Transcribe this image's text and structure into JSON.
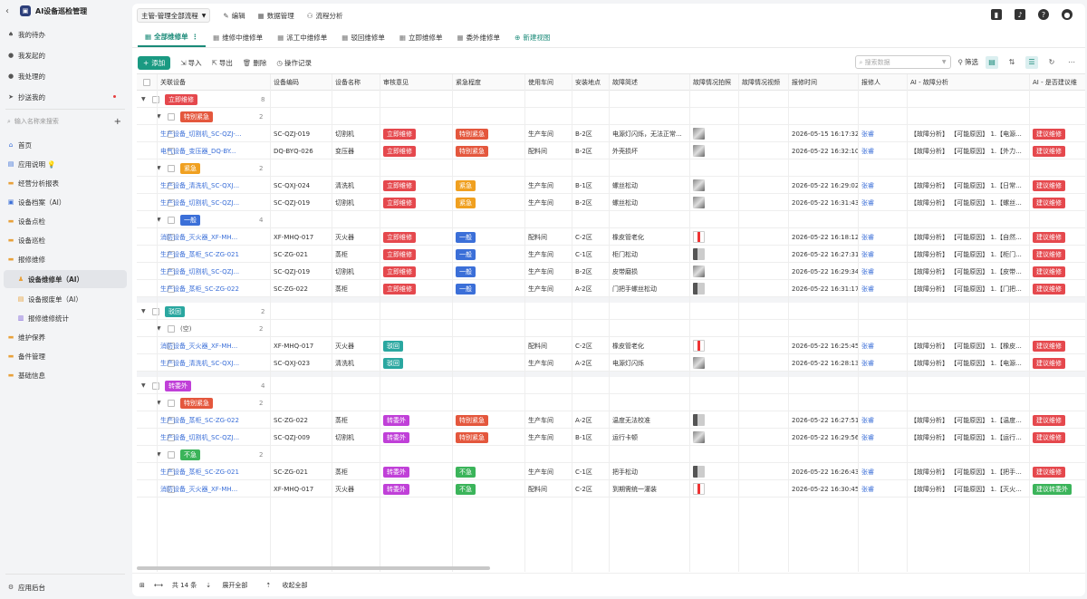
{
  "app": {
    "title": "AI设备巡检管理",
    "back_icon": "chevron-left",
    "logo_icon": "app-logo"
  },
  "sidebar": {
    "quick": [
      {
        "label": "我的待办",
        "icon": "pin-icon"
      },
      {
        "label": "我发起的",
        "icon": "send-icon"
      },
      {
        "label": "我处理的",
        "icon": "check-icon"
      },
      {
        "label": "抄送我的",
        "icon": "paper-plane-icon",
        "badge_dot": true
      }
    ],
    "search_placeholder": "输入名称来搜索",
    "nav": [
      {
        "label": "首页",
        "icon": "home-icon",
        "level": 0
      },
      {
        "label": "应用说明",
        "icon": "doc-icon",
        "level": 0,
        "emoji": "💡"
      },
      {
        "label": "经营分析报表",
        "icon": "folder-icon",
        "level": 0
      },
      {
        "label": "设备档案（AI）",
        "icon": "device-icon",
        "level": 0
      },
      {
        "label": "设备点检",
        "icon": "folder-icon",
        "level": 0
      },
      {
        "label": "设备巡检",
        "icon": "folder-icon",
        "level": 0
      },
      {
        "label": "报修维修",
        "icon": "folder-icon",
        "level": 0
      },
      {
        "label": "设备维修单（AI）",
        "icon": "person-icon",
        "level": 1,
        "active": true
      },
      {
        "label": "设备报废单（AI）",
        "icon": "form-icon",
        "level": 1
      },
      {
        "label": "报修维修统计",
        "icon": "chart-icon",
        "level": 1
      },
      {
        "label": "维护保养",
        "icon": "folder-icon",
        "level": 0
      },
      {
        "label": "备件管理",
        "icon": "folder-icon",
        "level": 0
      },
      {
        "label": "基础信息",
        "icon": "folder-icon",
        "level": 0
      }
    ],
    "footer": {
      "label": "应用后台",
      "icon": "gear-icon"
    }
  },
  "topbar": {
    "flow_select": "主管-管理全部流程",
    "buttons": [
      {
        "label": "编辑",
        "icon": "edit-icon"
      },
      {
        "label": "数据管理",
        "icon": "database-icon"
      },
      {
        "label": "流程分析",
        "icon": "flow-icon"
      }
    ],
    "right_icons": [
      "notebook-icon",
      "bell-icon",
      "help-icon",
      "user-icon"
    ]
  },
  "view_tabs": [
    {
      "label": "全部维修单",
      "active": true,
      "more": "⋮"
    },
    {
      "label": "维修中维修单"
    },
    {
      "label": "派工中维修单"
    },
    {
      "label": "驳回维修单"
    },
    {
      "label": "立即维修单"
    },
    {
      "label": "委外维修单"
    }
  ],
  "new_view": "新建视图",
  "toolbar": {
    "add": "添加",
    "import": "导入",
    "export": "导出",
    "delete": "删除",
    "log": "操作记录",
    "search_placeholder": "搜索数据",
    "filter": "筛选"
  },
  "columns": [
    "关联设备",
    "设备编码",
    "设备名称",
    "审核意见",
    "紧急程度",
    "使用车间",
    "安装地点",
    "故障简述",
    "故障情况拍照",
    "故障情况视频",
    "报修时间",
    "报修人",
    "AI - 故障分析",
    "AI - 是否建议维"
  ],
  "groups": [
    {
      "label": "立即维修",
      "color": "#e5484d",
      "count": 8,
      "subgroups": [
        {
          "label": "特别紧急",
          "color": "#e4573d",
          "count": 2,
          "rows": [
            {
              "device": "生产设备_切割机_SC-QZJ-...",
              "code": "SC-QZJ-019",
              "name": "切割机",
              "review": "立即维修",
              "review_color": "#e5484d",
              "urgency": "特别紧急",
              "urgency_color": "#e4573d",
              "workshop": "生产车间",
              "location": "B-2区",
              "desc": "电源灯闪烁，无法正常...",
              "photo": "saw",
              "time": "2026-05-15 16:17:32",
              "reporter": "张睿",
              "ai": "【故障分析】 【可能原因】 1.【电源...",
              "suggest": "建议维修",
              "suggest_color": "#e5484d"
            },
            {
              "device": "电气设备_变压器_DQ-BY...",
              "code": "DQ-BYQ-026",
              "name": "变压器",
              "review": "立即维修",
              "review_color": "#e5484d",
              "urgency": "特别紧急",
              "urgency_color": "#e4573d",
              "workshop": "配料间",
              "location": "B-2区",
              "desc": "外壳损坏",
              "photo": "transformer",
              "time": "2026-05-22 16:32:10",
              "reporter": "张睿",
              "ai": "【故障分析】 【可能原因】 1.【外力...",
              "suggest": "建议维修",
              "suggest_color": "#e5484d"
            }
          ]
        },
        {
          "label": "紧急",
          "color": "#f0a020",
          "count": 2,
          "rows": [
            {
              "device": "生产设备_清洗机_SC-QXJ...",
              "code": "SC-QXJ-024",
              "name": "清洗机",
              "review": "立即维修",
              "review_color": "#e5484d",
              "urgency": "紧急",
              "urgency_color": "#f0a020",
              "workshop": "生产车间",
              "location": "B-1区",
              "desc": "螺丝松动",
              "photo": "saw",
              "time": "2026-05-22 16:29:02",
              "reporter": "张睿",
              "ai": "【故障分析】 【可能原因】 1.【日常...",
              "suggest": "建议维修",
              "suggest_color": "#e5484d"
            },
            {
              "device": "生产设备_切割机_SC-QZJ...",
              "code": "SC-QZJ-019",
              "name": "切割机",
              "review": "立即维修",
              "review_color": "#e5484d",
              "urgency": "紧急",
              "urgency_color": "#f0a020",
              "workshop": "生产车间",
              "location": "B-2区",
              "desc": "螺丝松动",
              "photo": "saw",
              "time": "2026-05-22 16:31:43",
              "reporter": "张睿",
              "ai": "【故障分析】 【可能原因】 1.【螺丝...",
              "suggest": "建议维修",
              "suggest_color": "#e5484d"
            }
          ]
        },
        {
          "label": "一般",
          "color": "#3b6fd8",
          "count": 4,
          "rows": [
            {
              "device": "消防设备_灭火器_XF-MH...",
              "code": "XF-MHQ-017",
              "name": "灭火器",
              "review": "立即维修",
              "review_color": "#e5484d",
              "urgency": "一般",
              "urgency_color": "#3b6fd8",
              "workshop": "配料间",
              "location": "C-2区",
              "desc": "橡皮管老化",
              "photo": "ext",
              "time": "2026-05-22 16:18:12",
              "reporter": "张睿",
              "ai": "【故障分析】 【可能原因】 1.【自然...",
              "suggest": "建议维修",
              "suggest_color": "#e5484d"
            },
            {
              "device": "生产设备_蒸柜_SC-ZG-021",
              "code": "SC-ZG-021",
              "name": "蒸柜",
              "review": "立即维修",
              "review_color": "#e5484d",
              "urgency": "一般",
              "urgency_color": "#3b6fd8",
              "workshop": "生产车间",
              "location": "C-1区",
              "desc": "柜门松动",
              "photo": "cab",
              "time": "2026-05-22 16:27:31",
              "reporter": "张睿",
              "ai": "【故障分析】 【可能原因】 1.【柜门...",
              "suggest": "建议维修",
              "suggest_color": "#e5484d"
            },
            {
              "device": "生产设备_切割机_SC-QZJ...",
              "code": "SC-QZJ-019",
              "name": "切割机",
              "review": "立即维修",
              "review_color": "#e5484d",
              "urgency": "一般",
              "urgency_color": "#3b6fd8",
              "workshop": "生产车间",
              "location": "B-2区",
              "desc": "皮带磨损",
              "photo": "saw",
              "time": "2026-05-22 16:29:34",
              "reporter": "张睿",
              "ai": "【故障分析】 【可能原因】 1.【皮带...",
              "suggest": "建议维修",
              "suggest_color": "#e5484d"
            },
            {
              "device": "生产设备_蒸柜_SC-ZG-022",
              "code": "SC-ZG-022",
              "name": "蒸柜",
              "review": "立即维修",
              "review_color": "#e5484d",
              "urgency": "一般",
              "urgency_color": "#3b6fd8",
              "workshop": "生产车间",
              "location": "A-2区",
              "desc": "门把手螺丝松动",
              "photo": "cab",
              "time": "2026-05-22 16:31:17",
              "reporter": "张睿",
              "ai": "【故障分析】 【可能原因】 1.【门把...",
              "suggest": "建议维修",
              "suggest_color": "#e5484d"
            }
          ]
        }
      ]
    },
    {
      "label": "驳回",
      "color": "#2aa7a0",
      "count": 2,
      "subgroups": [
        {
          "label": "(空)",
          "color": "",
          "count": 2,
          "rows": [
            {
              "device": "消防设备_灭火器_XF-MH...",
              "code": "XF-MHQ-017",
              "name": "灭火器",
              "review": "驳回",
              "review_color": "#2aa7a0",
              "urgency": "",
              "urgency_color": "",
              "workshop": "配料间",
              "location": "C-2区",
              "desc": "橡皮管老化",
              "photo": "ext",
              "time": "2026-05-22 16:25:45",
              "reporter": "张睿",
              "ai": "【故障分析】 【可能原因】 1.【橡皮...",
              "suggest": "建议维修",
              "suggest_color": "#e5484d"
            },
            {
              "device": "生产设备_清洗机_SC-QXJ...",
              "code": "SC-QXJ-023",
              "name": "清洗机",
              "review": "驳回",
              "review_color": "#2aa7a0",
              "urgency": "",
              "urgency_color": "",
              "workshop": "生产车间",
              "location": "A-2区",
              "desc": "电源灯闪烁",
              "photo": "saw",
              "time": "2026-05-22 16:28:13",
              "reporter": "张睿",
              "ai": "【故障分析】 【可能原因】 1.【电源...",
              "suggest": "建议维修",
              "suggest_color": "#e5484d"
            }
          ]
        }
      ]
    },
    {
      "label": "转委外",
      "color": "#c040d8",
      "count": 4,
      "subgroups": [
        {
          "label": "特别紧急",
          "color": "#e4573d",
          "count": 2,
          "rows": [
            {
              "device": "生产设备_蒸柜_SC-ZG-022",
              "code": "SC-ZG-022",
              "name": "蒸柜",
              "review": "转委外",
              "review_color": "#c040d8",
              "urgency": "特别紧急",
              "urgency_color": "#e4573d",
              "workshop": "生产车间",
              "location": "A-2区",
              "desc": "温度无法校准",
              "photo": "cab",
              "time": "2026-05-22 16:27:51",
              "reporter": "张睿",
              "ai": "【故障分析】 【可能原因】 1.【温度...",
              "suggest": "建议维修",
              "suggest_color": "#e5484d"
            },
            {
              "device": "生产设备_切割机_SC-QZJ...",
              "code": "SC-QZJ-009",
              "name": "切割机",
              "review": "转委外",
              "review_color": "#c040d8",
              "urgency": "特别紧急",
              "urgency_color": "#e4573d",
              "workshop": "生产车间",
              "location": "B-1区",
              "desc": "运行卡顿",
              "photo": "saw",
              "time": "2026-05-22 16:29:56",
              "reporter": "张睿",
              "ai": "【故障分析】 【可能原因】 1.【运行...",
              "suggest": "建议维修",
              "suggest_color": "#e5484d"
            }
          ]
        },
        {
          "label": "不急",
          "color": "#3bb45a",
          "count": 2,
          "rows": [
            {
              "device": "生产设备_蒸柜_SC-ZG-021",
              "code": "SC-ZG-021",
              "name": "蒸柜",
              "review": "转委外",
              "review_color": "#c040d8",
              "urgency": "不急",
              "urgency_color": "#3bb45a",
              "workshop": "生产车间",
              "location": "C-1区",
              "desc": "把手松动",
              "photo": "cab",
              "time": "2026-05-22 16:26:43",
              "reporter": "张睿",
              "ai": "【故障分析】 【可能原因】 1.【把手...",
              "suggest": "建议维修",
              "suggest_color": "#e5484d"
            },
            {
              "device": "消防设备_灭火器_XF-MH...",
              "code": "XF-MHQ-017",
              "name": "灭火器",
              "review": "转委外",
              "review_color": "#c040d8",
              "urgency": "不急",
              "urgency_color": "#3bb45a",
              "workshop": "配料间",
              "location": "C-2区",
              "desc": "到期需统一灌装",
              "photo": "ext",
              "time": "2026-05-22 16:30:45",
              "reporter": "张睿",
              "ai": "【故障分析】 【可能原因】 1.【灭火...",
              "suggest": "建议转委外",
              "suggest_color": "#3bb45a"
            }
          ]
        }
      ]
    }
  ],
  "footer": {
    "total": "共 14 条",
    "expand": "展开全部",
    "collapse": "收起全部"
  }
}
